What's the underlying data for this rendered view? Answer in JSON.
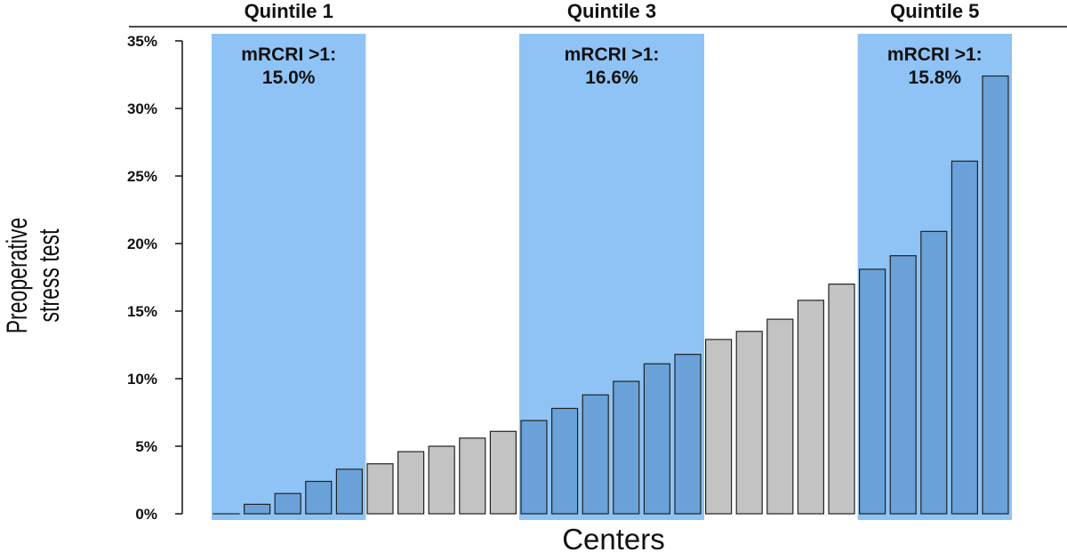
{
  "chart_data": {
    "type": "bar",
    "xlabel": "Centers",
    "ylabel_lines": [
      "Preoperative",
      "stress test"
    ],
    "ylim": [
      0,
      35
    ],
    "yticks": [
      0,
      5,
      10,
      15,
      20,
      25,
      30,
      35
    ],
    "ytick_labels": [
      "0%",
      "5%",
      "10%",
      "15%",
      "20%",
      "25%",
      "30%",
      "35%"
    ],
    "values": [
      0.0,
      0.7,
      1.5,
      2.4,
      3.3,
      3.7,
      4.6,
      5.0,
      5.6,
      6.1,
      6.9,
      7.8,
      8.8,
      9.8,
      11.1,
      11.8,
      12.9,
      13.5,
      14.4,
      15.8,
      17.0,
      18.1,
      19.1,
      20.9,
      26.1,
      32.4
    ],
    "quintiles": [
      {
        "name": "Quintile 1",
        "start_index": 0,
        "end_index": 4,
        "annotation_lines": [
          "mRCRI >1:",
          "15.0%"
        ]
      },
      {
        "name": "Quintile 3",
        "start_index": 10,
        "end_index": 15,
        "annotation_lines": [
          "mRCRI >1:",
          "16.6%"
        ]
      },
      {
        "name": "Quintile 5",
        "start_index": 21,
        "end_index": 25,
        "annotation_lines": [
          "mRCRI >1:",
          "15.8%"
        ]
      }
    ],
    "colors": {
      "band": "#8fc3f5",
      "bar_highlight": "#6aa1d8",
      "bar_default": "#c3c3c3",
      "bar_stroke": "#222222"
    }
  }
}
